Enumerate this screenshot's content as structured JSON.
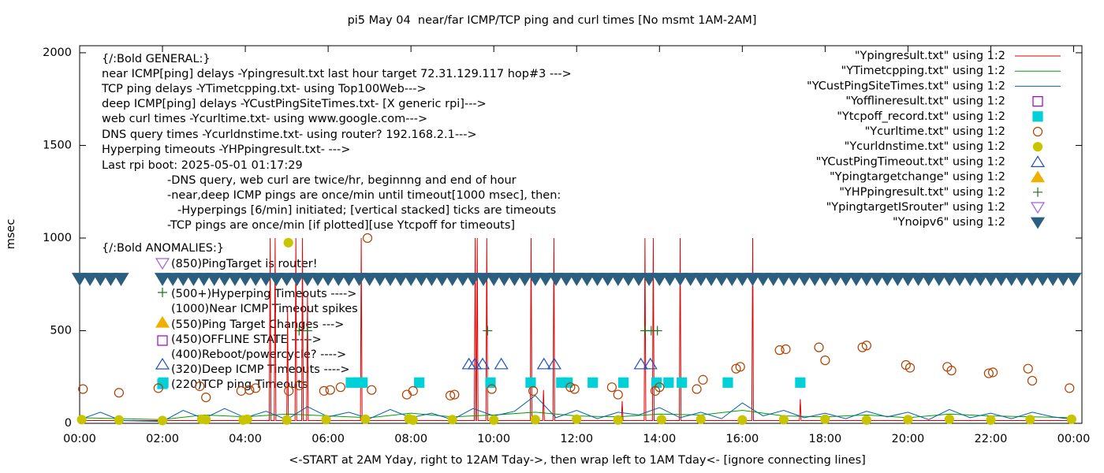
{
  "chart_data": {
    "type": "line",
    "title": "pi5 May 04  near/far ICMP/TCP ping and curl times [No msmt 1AM-2AM]",
    "x_label": "<-START at 2AM Yday, right to 12AM Tday->, then wrap left to 1AM Tday<- [ignore connecting lines]",
    "y_label": "msec",
    "xlim": [
      0,
      24.2
    ],
    "ylim": [
      0,
      2038
    ],
    "xticks": [
      {
        "value": 0,
        "label": "00:00"
      },
      {
        "value": 2,
        "label": "02:00"
      },
      {
        "value": 4,
        "label": "04:00"
      },
      {
        "value": 6,
        "label": "06:00"
      },
      {
        "value": 8,
        "label": "08:00"
      },
      {
        "value": 10,
        "label": "10:00"
      },
      {
        "value": 12,
        "label": "12:00"
      },
      {
        "value": 14,
        "label": "14:00"
      },
      {
        "value": 16,
        "label": "16:00"
      },
      {
        "value": 18,
        "label": "18:00"
      },
      {
        "value": 20,
        "label": "20:00"
      },
      {
        "value": 22,
        "label": "22:00"
      },
      {
        "value": 24,
        "label": "00:00"
      }
    ],
    "yticks": [
      0,
      500,
      1000,
      1500,
      2000
    ],
    "grid": false,
    "legend": "top-right",
    "annotations": [
      "{/:Bold GENERAL:}",
      "near ICMP[ping] delays -Ypingresult.txt last hour target 72.31.129.117 hop#3 --->",
      "TCP ping delays -YTimetcpping.txt- using Top100Web--->",
      "deep ICMP[ping] delays -YCustPingSiteTimes.txt- [X generic rpi]--->",
      "web curl times -Ycurltime.txt- using www.google.com--->",
      "DNS query times -Ycurldnstime.txt- using router? 192.168.2.1--->",
      "Hyperping timeouts -YHPpingresult.txt- --->",
      "Last rpi boot: 2025-05-01 01:17:29",
      "-DNS query, web curl are twice/hr, beginnng and end of hour",
      "-near,deep ICMP pings are once/min until timeout[1000 msec], then:",
      "-Hyperpings [6/min] initiated; [vertical stacked] ticks are timeouts",
      "-TCP pings are once/min [if plotted][use Ytcpoff for timeouts]",
      "{/:Bold ANOMALIES:}",
      "(850)PingTarget is router!",
      "(500+)Hyperping Timeouts ---->",
      "(1000)Near ICMP Timeout spikes",
      "(550)Ping Target Changes --->",
      "(450)OFFLINE STATE ----->",
      "(400)Reboot/powercycle? ---->",
      "(320)Deep ICMP Timeouts ---->",
      "(220)TCP ping Timeouts"
    ],
    "series": [
      {
        "name": "\"Ypingresult.txt\" using 1:2",
        "color": "#e00000",
        "style": "line",
        "x": [
          0,
          1.0,
          2.0,
          4.58,
          4.6,
          4.62,
          4.7,
          4.72,
          4.74,
          5.0,
          5.02,
          5.04,
          5.2,
          5.22,
          5.24,
          5.36,
          5.38,
          5.4,
          5.48,
          5.5,
          5.52,
          6.78,
          6.8,
          6.82,
          9.53,
          9.55,
          9.57,
          9.58,
          9.6,
          9.62,
          9.81,
          9.83,
          9.85,
          10.88,
          10.9,
          10.92,
          11.18,
          11.2,
          11.22,
          11.43,
          11.45,
          11.47,
          13.08,
          13.1,
          13.12,
          13.63,
          13.65,
          13.67,
          13.83,
          13.85,
          13.87,
          14.48,
          14.5,
          14.52,
          16.23,
          16.25,
          16.27,
          17.38,
          17.4,
          17.42,
          24.0
        ],
        "values": [
          15,
          15,
          15,
          15,
          1000,
          15,
          15,
          1000,
          15,
          15,
          620,
          15,
          15,
          1000,
          15,
          15,
          1000,
          15,
          15,
          700,
          15,
          15,
          1000,
          15,
          15,
          1000,
          15,
          15,
          1000,
          15,
          15,
          1000,
          15,
          15,
          1000,
          15,
          15,
          180,
          15,
          15,
          1000,
          15,
          15,
          120,
          15,
          15,
          1000,
          15,
          15,
          1000,
          15,
          15,
          1000,
          15,
          15,
          1000,
          15,
          15,
          130,
          15,
          15
        ]
      },
      {
        "name": "\"YTimetcpping.txt\" using 1:2",
        "color": "#00a000",
        "style": "line",
        "x": [
          0,
          1,
          2,
          3,
          4,
          5,
          6,
          7,
          8,
          9,
          10,
          11,
          12,
          13,
          14,
          15,
          16,
          17,
          18,
          19,
          20,
          21,
          22,
          23,
          24
        ],
        "values": [
          30,
          25,
          20,
          45,
          35,
          50,
          40,
          30,
          55,
          35,
          45,
          60,
          40,
          35,
          50,
          45,
          70,
          40,
          35,
          45,
          30,
          50,
          40,
          35,
          30
        ]
      },
      {
        "name": "\"YCustPingSiteTimes.txt\" using 1:2",
        "color": "#0060ad",
        "style": "line",
        "x": [
          0,
          0.5,
          1.0,
          2.0,
          2.5,
          3.0,
          3.5,
          4.0,
          4.5,
          5.0,
          5.5,
          6.0,
          6.5,
          7.0,
          7.5,
          8.0,
          8.5,
          9.0,
          9.5,
          10.0,
          10.5,
          11.0,
          11.5,
          12.0,
          12.5,
          13.0,
          13.5,
          14.0,
          14.5,
          15.0,
          15.5,
          16.0,
          16.5,
          17.0,
          17.5,
          18.0,
          18.5,
          19.0,
          19.5,
          20.0,
          20.5,
          21.0,
          21.5,
          22.0,
          22.5,
          23.0,
          23.5,
          24.0
        ],
        "values": [
          20,
          60,
          15,
          10,
          70,
          25,
          80,
          30,
          65,
          20,
          90,
          35,
          60,
          25,
          75,
          30,
          55,
          20,
          80,
          40,
          65,
          150,
          30,
          70,
          25,
          60,
          45,
          85,
          30,
          60,
          25,
          110,
          40,
          70,
          30,
          55,
          25,
          65,
          35,
          60,
          20,
          75,
          30,
          55,
          25,
          60,
          35,
          20
        ]
      },
      {
        "name": "\"Yofflineresult.txt\" using 1:2",
        "color": "#9400d3",
        "style": "points",
        "marker": "open-square",
        "x": [],
        "values": []
      },
      {
        "name": "\"Ytcpoff_record.txt\" using 1:2",
        "color": "#00d0d8",
        "style": "points",
        "marker": "filled-square",
        "x": [
          2.02,
          6.55,
          6.74,
          6.83,
          8.2,
          9.92,
          10.89,
          11.63,
          11.78,
          12.39,
          13.13,
          13.93,
          14.22,
          14.54,
          15.65,
          17.4
        ],
        "values": [
          220,
          220,
          220,
          220,
          220,
          220,
          220,
          220,
          220,
          220,
          220,
          220,
          220,
          220,
          220,
          220
        ]
      },
      {
        "name": "\"Ycurltime.txt\" using 1:2",
        "color": "#b04000",
        "style": "points",
        "marker": "open-circle",
        "x": [
          0.08,
          0.95,
          1.9,
          2.9,
          3.05,
          3.9,
          4.1,
          4.25,
          5.05,
          5.3,
          5.9,
          6.05,
          6.3,
          6.95,
          7.05,
          7.9,
          8.05,
          8.95,
          9.05,
          9.95,
          10.95,
          11.85,
          11.95,
          12.85,
          13.0,
          13.9,
          14.0,
          14.9,
          15.05,
          15.85,
          15.95,
          16.9,
          17.05,
          17.85,
          18.0,
          18.9,
          19.0,
          19.95,
          20.05,
          20.95,
          21.05,
          21.95,
          22.05,
          22.9,
          23.0,
          23.9
        ],
        "values": [
          185,
          165,
          190,
          200,
          140,
          175,
          180,
          190,
          175,
          205,
          175,
          180,
          195,
          1000,
          180,
          155,
          175,
          150,
          155,
          185,
          175,
          195,
          185,
          195,
          155,
          175,
          195,
          185,
          235,
          295,
          305,
          395,
          400,
          410,
          340,
          410,
          420,
          315,
          300,
          305,
          285,
          270,
          275,
          295,
          230,
          190
        ]
      },
      {
        "name": "\"Ycurldnstime.txt\" using 1:2",
        "color": "#c8c400",
        "style": "points",
        "marker": "filled-circle",
        "x": [
          0.05,
          0.95,
          2.0,
          2.95,
          3.05,
          3.95,
          4.05,
          5.04,
          5.0,
          5.95,
          6.9,
          7.95,
          8.05,
          9.0,
          10.0,
          11.0,
          12.0,
          13.0,
          14.05,
          15.0,
          16.0,
          17.0,
          18.0,
          19.0,
          20.0,
          21.0,
          22.0,
          22.95,
          23.95
        ],
        "values": [
          20,
          18,
          15,
          22,
          20,
          18,
          22,
          975,
          18,
          20,
          22,
          24,
          18,
          20,
          18,
          20,
          22,
          18,
          20,
          22,
          18,
          20,
          22,
          18,
          20,
          22,
          18,
          20,
          22
        ]
      },
      {
        "name": "\"YCustPingTimeout.txt\" using 1:2",
        "color": "#2050c0",
        "style": "points",
        "marker": "open-triangle",
        "x": [
          9.4,
          9.54,
          9.73,
          10.18,
          11.21,
          11.46,
          13.55,
          13.78
        ],
        "values": [
          320,
          320,
          320,
          320,
          320,
          320,
          320,
          320
        ]
      },
      {
        "name": "\"Ypingtargetchange\" using 1:2",
        "color": "#f0b000",
        "style": "points",
        "marker": "filled-triangle",
        "x": [],
        "values": []
      },
      {
        "name": "\"YHPpingresult.txt\" using 1:2",
        "color": "#207020",
        "style": "points",
        "marker": "plus",
        "x": [
          5.3,
          5.5,
          9.85,
          13.65,
          13.8,
          13.95
        ],
        "values": [
          500,
          500,
          500,
          500,
          500,
          500
        ]
      },
      {
        "name": "\"YpingtargetISrouter\" using 1:2",
        "color": "#a060e0",
        "style": "points",
        "marker": "open-down-triangle",
        "x": [],
        "values": []
      },
      {
        "name": "\"Ynoipv6\" using 1:2",
        "color": "#2a5f7f",
        "style": "points",
        "marker": "filled-down-triangle",
        "x": [
          0,
          0.25,
          0.5,
          0.75,
          1.0,
          2.0,
          2.25,
          2.5,
          2.75,
          3.0,
          3.25,
          3.5,
          3.75,
          4.0,
          4.25,
          4.5,
          4.75,
          5.0,
          5.25,
          5.5,
          5.75,
          6.0,
          6.25,
          6.5,
          6.75,
          7.0,
          7.25,
          7.5,
          7.75,
          8.0,
          8.25,
          8.5,
          8.75,
          9.0,
          9.25,
          9.5,
          9.75,
          10.0,
          10.25,
          10.5,
          10.75,
          11.0,
          11.25,
          11.5,
          11.75,
          12.0,
          12.25,
          12.5,
          12.75,
          13.0,
          13.25,
          13.5,
          13.75,
          14.0,
          14.25,
          14.5,
          14.75,
          15.0,
          15.25,
          15.5,
          15.75,
          16.0,
          16.25,
          16.5,
          16.75,
          17.0,
          17.25,
          17.5,
          17.75,
          18.0,
          18.25,
          18.5,
          18.75,
          19.0,
          19.25,
          19.5,
          19.75,
          20.0,
          20.25,
          20.5,
          20.75,
          21.0,
          21.25,
          21.5,
          21.75,
          22.0,
          22.25,
          22.5,
          22.75,
          23.0,
          23.25,
          23.5,
          23.75,
          24.0
        ],
        "values": [
          780,
          780,
          780,
          780,
          780,
          780,
          780,
          780,
          780,
          780,
          780,
          780,
          780,
          780,
          780,
          780,
          780,
          780,
          780,
          780,
          780,
          780,
          780,
          780,
          780,
          780,
          780,
          780,
          780,
          780,
          780,
          780,
          780,
          780,
          780,
          780,
          780,
          780,
          780,
          780,
          780,
          780,
          780,
          780,
          780,
          780,
          780,
          780,
          780,
          780,
          780,
          780,
          780,
          780,
          780,
          780,
          780,
          780,
          780,
          780,
          780,
          780,
          780,
          780,
          780,
          780,
          780,
          780,
          780,
          780,
          780,
          780,
          780,
          780,
          780,
          780,
          780,
          780,
          780,
          780,
          780,
          780,
          780,
          780,
          780,
          780,
          780,
          780,
          780,
          780,
          780,
          780,
          780,
          780
        ]
      }
    ]
  }
}
